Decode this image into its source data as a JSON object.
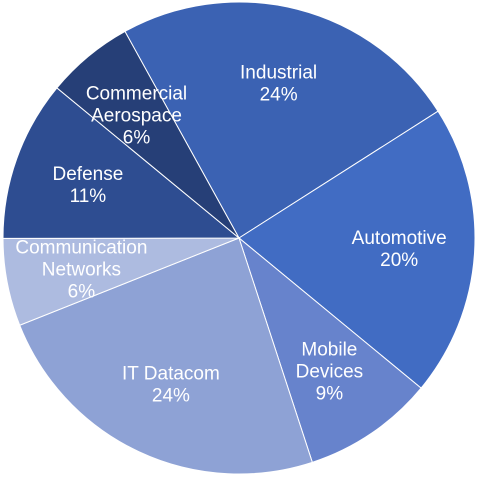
{
  "chart_data": {
    "type": "pie",
    "title": "",
    "legend": "none",
    "slices": [
      {
        "label_lines": [
          "Industrial"
        ],
        "value_label": "24%",
        "value": 24,
        "color": "#3b62b3"
      },
      {
        "label_lines": [
          "Automotive"
        ],
        "value_label": "20%",
        "value": 20,
        "color": "#416cc3"
      },
      {
        "label_lines": [
          "Mobile",
          "Devices"
        ],
        "value_label": "9%",
        "value": 9,
        "color": "#6783cc"
      },
      {
        "label_lines": [
          "IT Datacom"
        ],
        "value_label": "24%",
        "value": 24,
        "color": "#8ea2d5"
      },
      {
        "label_lines": [
          "Communication",
          "Networks"
        ],
        "value_label": "6%",
        "value": 6,
        "color": "#adbbe0"
      },
      {
        "label_lines": [
          "Defense"
        ],
        "value_label": "11%",
        "value": 11,
        "color": "#2e4d91"
      },
      {
        "label_lines": [
          "Commercial",
          "Aerospace"
        ],
        "value_label": "6%",
        "value": 6,
        "color": "#263f77"
      }
    ]
  }
}
